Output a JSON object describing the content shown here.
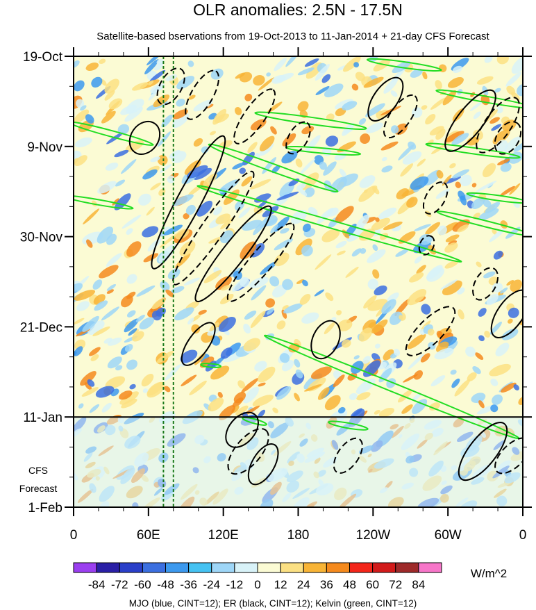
{
  "chart_data": {
    "type": "heatmap",
    "title": "OLR anomalies: 2.5N - 17.5N",
    "subtitle": "Satellite-based bservations from 19-Oct-2013 to 11-Jan-2014 + 21-day CFS Forecast",
    "x_ticks": [
      "0",
      "60E",
      "120E",
      "180",
      "120W",
      "60W",
      "0"
    ],
    "x_tick_lon": [
      0,
      60,
      120,
      180,
      240,
      300,
      360
    ],
    "y_ticks": [
      "19-Oct",
      "9-Nov",
      "30-Nov",
      "21-Dec",
      "11-Jan",
      "1-Feb"
    ],
    "y_tick_day": [
      0,
      21,
      42,
      63,
      84,
      105
    ],
    "forecast_label_line1": "CFS",
    "forecast_label_line2": "Forecast",
    "forecast_start_day": 84,
    "reference_lines_lon": [
      72,
      80
    ],
    "colorbar": {
      "labels": [
        "-84",
        "-72",
        "-60",
        "-48",
        "-36",
        "-24",
        "-12",
        "0",
        "12",
        "24",
        "36",
        "48",
        "60",
        "72",
        "84"
      ],
      "colors": [
        "#9b3ff0",
        "#2a1fa6",
        "#2a3fc9",
        "#3b6fe0",
        "#3c99ee",
        "#45c2f2",
        "#9ed6f7",
        "#d8f2f8",
        "#fbfbd4",
        "#fbe083",
        "#f8b436",
        "#f58a1d",
        "#f4261a",
        "#d21b1b",
        "#9e2a2a",
        "#f776c9"
      ],
      "units": "W/m^2"
    },
    "footer": "MJO (blue, CINT=12); ER (black, CINT=12); Kelvin (green, CINT=12)",
    "contours": {
      "mjo_color": "#2233ee",
      "er_color": "#000000",
      "kelvin_color": "#22dd22"
    },
    "er_features": [
      {
        "lon": 57,
        "day": 19,
        "len": 14,
        "wid": 3.2,
        "ang": 55,
        "dashed": false
      },
      {
        "lon": 78,
        "day": 7,
        "len": 16,
        "wid": 2.5,
        "ang": 60,
        "dashed": true
      },
      {
        "lon": 103,
        "day": 9,
        "len": 22,
        "wid": 2.5,
        "ang": 60,
        "dashed": true
      },
      {
        "lon": 92,
        "day": 34,
        "len": 60,
        "wid": 2.8,
        "ang": 62,
        "dashed": false
      },
      {
        "lon": 112,
        "day": 40,
        "len": 55,
        "wid": 2.6,
        "ang": 55,
        "dashed": true
      },
      {
        "lon": 128,
        "day": 46,
        "len": 48,
        "wid": 2.6,
        "ang": 52,
        "dashed": false
      },
      {
        "lon": 150,
        "day": 48,
        "len": 40,
        "wid": 2.6,
        "ang": 50,
        "dashed": true
      },
      {
        "lon": 145,
        "day": 14,
        "len": 26,
        "wid": 2.4,
        "ang": 55,
        "dashed": true
      },
      {
        "lon": 180,
        "day": 19,
        "len": 14,
        "wid": 2.2,
        "ang": 60,
        "dashed": true
      },
      {
        "lon": 250,
        "day": 10,
        "len": 20,
        "wid": 2.8,
        "ang": 55,
        "dashed": false
      },
      {
        "lon": 262,
        "day": 14,
        "len": 20,
        "wid": 2.4,
        "ang": 55,
        "dashed": true
      },
      {
        "lon": 318,
        "day": 15,
        "len": 30,
        "wid": 3,
        "ang": 52,
        "dashed": false
      },
      {
        "lon": 340,
        "day": 16,
        "len": 26,
        "wid": 3,
        "ang": 55,
        "dashed": true
      },
      {
        "lon": 348,
        "day": 19,
        "len": 14,
        "wid": 2.6,
        "ang": 60,
        "dashed": true
      },
      {
        "lon": 290,
        "day": 33,
        "len": 14,
        "wid": 2.2,
        "ang": 60,
        "dashed": true
      },
      {
        "lon": 283,
        "day": 44,
        "len": 8,
        "wid": 1.6,
        "ang": 65,
        "dashed": true
      },
      {
        "lon": 330,
        "day": 53,
        "len": 14,
        "wid": 2.4,
        "ang": 60,
        "dashed": true
      },
      {
        "lon": 350,
        "day": 60,
        "len": 22,
        "wid": 3,
        "ang": 55,
        "dashed": false
      },
      {
        "lon": 286,
        "day": 64,
        "len": 26,
        "wid": 2.8,
        "ang": 45,
        "dashed": true
      },
      {
        "lon": 202,
        "day": 66,
        "len": 16,
        "wid": 3,
        "ang": 65,
        "dashed": false
      },
      {
        "lon": 100,
        "day": 67,
        "len": 20,
        "wid": 2.4,
        "ang": 55,
        "dashed": false
      },
      {
        "lon": 135,
        "day": 87,
        "len": 16,
        "wid": 3,
        "ang": 50,
        "dashed": false
      },
      {
        "lon": 140,
        "day": 92,
        "len": 22,
        "wid": 3,
        "ang": 50,
        "dashed": true
      },
      {
        "lon": 152,
        "day": 95,
        "len": 18,
        "wid": 2.6,
        "ang": 60,
        "dashed": false
      },
      {
        "lon": 220,
        "day": 93,
        "len": 16,
        "wid": 2.4,
        "ang": 55,
        "dashed": true
      },
      {
        "lon": 328,
        "day": 92,
        "len": 28,
        "wid": 3.2,
        "ang": 52,
        "dashed": false
      },
      {
        "lon": 352,
        "day": 93,
        "len": 18,
        "wid": 2.6,
        "ang": 45,
        "dashed": true
      }
    ],
    "kelvin_features": [
      {
        "lon": 265,
        "day": 2,
        "len": 30,
        "wid": 0.7,
        "ang": -8
      },
      {
        "lon": 30,
        "day": 18,
        "len": 35,
        "wid": 0.7,
        "ang": -15
      },
      {
        "lon": 20,
        "day": 34,
        "len": 28,
        "wid": 0.6,
        "ang": -10
      },
      {
        "lon": 190,
        "day": 15,
        "len": 45,
        "wid": 0.8,
        "ang": -8
      },
      {
        "lon": 200,
        "day": 22,
        "len": 30,
        "wid": 0.6,
        "ang": -5
      },
      {
        "lon": 160,
        "day": 26,
        "len": 55,
        "wid": 0.9,
        "ang": -20
      },
      {
        "lon": 205,
        "day": 39,
        "len": 110,
        "wid": 0.9,
        "ang": -16
      },
      {
        "lon": 255,
        "day": 77,
        "len": 110,
        "wid": 1,
        "ang": -22
      },
      {
        "lon": 330,
        "day": 10,
        "len": 40,
        "wid": 0.7,
        "ang": -10
      },
      {
        "lon": 320,
        "day": 22,
        "len": 38,
        "wid": 0.7,
        "ang": -8
      },
      {
        "lon": 330,
        "day": 39,
        "len": 40,
        "wid": 0.7,
        "ang": -14
      },
      {
        "lon": 340,
        "day": 33,
        "len": 25,
        "wid": 0.6,
        "ang": -8
      },
      {
        "lon": 220,
        "day": 86,
        "len": 16,
        "wid": 0.6,
        "ang": -10
      },
      {
        "lon": 145,
        "day": 85,
        "len": 10,
        "wid": 0.5,
        "ang": -15
      },
      {
        "lon": 110,
        "day": 72,
        "len": 8,
        "wid": 0.4,
        "ang": -5
      }
    ]
  }
}
